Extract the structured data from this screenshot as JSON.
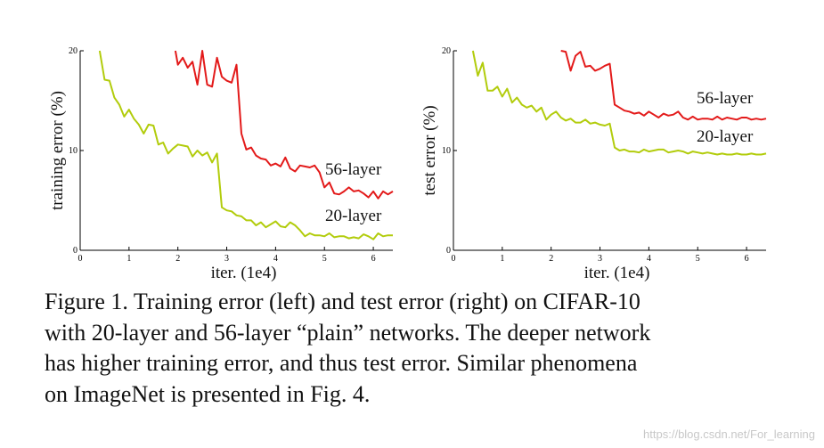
{
  "chart_data": [
    {
      "type": "line",
      "xlabel": "iter. (1e4)",
      "ylabel": "training error (%)",
      "xlim": [
        0,
        6.4
      ],
      "ylim": [
        0,
        20
      ],
      "xticks": [
        "0",
        "1",
        "2",
        "3",
        "4",
        "5",
        "6"
      ],
      "yticks": [
        "0",
        "10",
        "20"
      ],
      "grid": false,
      "series": [
        {
          "name": "56-layer",
          "color": "#e31a1a",
          "x": [
            1.95,
            2.0,
            2.1,
            2.2,
            2.3,
            2.4,
            2.5,
            2.6,
            2.7,
            2.8,
            2.9,
            3.0,
            3.1,
            3.2,
            3.3,
            3.4,
            3.5,
            3.6,
            3.7,
            3.8,
            3.9,
            4.0,
            4.1,
            4.2,
            4.3,
            4.4,
            4.5,
            4.6,
            4.7,
            4.8,
            4.9,
            5.0,
            5.1,
            5.2,
            5.3,
            5.4,
            5.5,
            5.6,
            5.7,
            5.8,
            5.9,
            6.0,
            6.1,
            6.2,
            6.3,
            6.4
          ],
          "y": [
            20,
            18.6,
            19.3,
            18.3,
            18.9,
            16.6,
            20.0,
            16.6,
            16.4,
            19.3,
            17.4,
            17.0,
            16.8,
            18.6,
            11.7,
            10.1,
            10.3,
            9.5,
            9.2,
            9.1,
            8.5,
            8.7,
            8.4,
            9.3,
            8.2,
            7.9,
            8.5,
            8.4,
            8.3,
            8.5,
            7.8,
            6.3,
            6.8,
            5.7,
            5.6,
            5.9,
            6.3,
            5.9,
            6.0,
            5.7,
            5.3,
            5.9,
            5.2,
            5.9,
            5.6,
            5.9
          ]
        },
        {
          "name": "20-layer",
          "color": "#b2cc0c",
          "x": [
            0.4,
            0.5,
            0.6,
            0.7,
            0.8,
            0.9,
            1.0,
            1.1,
            1.2,
            1.3,
            1.4,
            1.5,
            1.6,
            1.7,
            1.8,
            1.9,
            2.0,
            2.1,
            2.2,
            2.3,
            2.4,
            2.5,
            2.6,
            2.7,
            2.8,
            2.9,
            3.0,
            3.1,
            3.2,
            3.3,
            3.4,
            3.5,
            3.6,
            3.7,
            3.8,
            3.9,
            4.0,
            4.1,
            4.2,
            4.3,
            4.4,
            4.5,
            4.6,
            4.7,
            4.8,
            4.9,
            5.0,
            5.1,
            5.2,
            5.3,
            5.4,
            5.5,
            5.6,
            5.7,
            5.8,
            5.9,
            6.0,
            6.1,
            6.2,
            6.3,
            6.4
          ],
          "y": [
            20,
            17.1,
            17.0,
            15.3,
            14.6,
            13.4,
            14.1,
            13.2,
            12.6,
            11.7,
            12.6,
            12.5,
            10.6,
            10.8,
            9.7,
            10.2,
            10.6,
            10.5,
            10.4,
            9.4,
            10.0,
            9.5,
            9.8,
            8.8,
            9.7,
            4.3,
            4.0,
            3.9,
            3.5,
            3.4,
            3.0,
            3.0,
            2.5,
            2.8,
            2.3,
            2.6,
            2.9,
            2.4,
            2.3,
            2.8,
            2.5,
            2.0,
            1.4,
            1.7,
            1.5,
            1.5,
            1.4,
            1.7,
            1.3,
            1.4,
            1.4,
            1.2,
            1.3,
            1.2,
            1.6,
            1.4,
            1.1,
            1.7,
            1.4,
            1.5,
            1.5
          ]
        }
      ]
    },
    {
      "type": "line",
      "xlabel": "iter. (1e4)",
      "ylabel": "test error (%)",
      "xlim": [
        0,
        6.4
      ],
      "ylim": [
        0,
        20
      ],
      "xticks": [
        "0",
        "1",
        "2",
        "3",
        "4",
        "5",
        "6"
      ],
      "yticks": [
        "0",
        "10",
        "20"
      ],
      "grid": false,
      "series": [
        {
          "name": "56-layer",
          "color": "#e31a1a",
          "x": [
            2.2,
            2.3,
            2.4,
            2.5,
            2.6,
            2.7,
            2.8,
            2.9,
            3.0,
            3.1,
            3.2,
            3.3,
            3.4,
            3.5,
            3.6,
            3.7,
            3.8,
            3.9,
            4.0,
            4.1,
            4.2,
            4.3,
            4.4,
            4.5,
            4.6,
            4.7,
            4.8,
            4.9,
            5.0,
            5.1,
            5.2,
            5.3,
            5.4,
            5.5,
            5.6,
            5.7,
            5.8,
            5.9,
            6.0,
            6.1,
            6.2,
            6.3,
            6.4
          ],
          "y": [
            20,
            19.9,
            18.0,
            19.5,
            19.9,
            18.4,
            18.5,
            18.0,
            18.2,
            18.5,
            18.7,
            14.6,
            14.3,
            14.0,
            13.9,
            13.7,
            13.8,
            13.5,
            13.9,
            13.6,
            13.3,
            13.7,
            13.5,
            13.6,
            13.9,
            13.3,
            13.1,
            13.4,
            13.1,
            13.2,
            13.2,
            13.1,
            13.4,
            13.1,
            13.3,
            13.2,
            13.1,
            13.3,
            13.3,
            13.1,
            13.2,
            13.1,
            13.2
          ]
        },
        {
          "name": "20-layer",
          "color": "#b2cc0c",
          "x": [
            0.4,
            0.5,
            0.6,
            0.7,
            0.8,
            0.9,
            1.0,
            1.1,
            1.2,
            1.3,
            1.4,
            1.5,
            1.6,
            1.7,
            1.8,
            1.9,
            2.0,
            2.1,
            2.2,
            2.3,
            2.4,
            2.5,
            2.6,
            2.7,
            2.8,
            2.9,
            3.0,
            3.1,
            3.2,
            3.3,
            3.4,
            3.5,
            3.6,
            3.7,
            3.8,
            3.9,
            4.0,
            4.1,
            4.2,
            4.3,
            4.4,
            4.5,
            4.6,
            4.7,
            4.8,
            4.9,
            5.0,
            5.1,
            5.2,
            5.3,
            5.4,
            5.5,
            5.6,
            5.7,
            5.8,
            5.9,
            6.0,
            6.1,
            6.2,
            6.3,
            6.4
          ],
          "y": [
            20,
            17.5,
            18.8,
            16.0,
            16.0,
            16.4,
            15.4,
            16.2,
            14.8,
            15.3,
            14.6,
            14.3,
            14.5,
            13.9,
            14.3,
            13.1,
            13.6,
            13.9,
            13.3,
            13.0,
            13.2,
            12.8,
            12.8,
            13.1,
            12.7,
            12.8,
            12.6,
            12.5,
            12.7,
            10.3,
            10.0,
            10.1,
            9.9,
            9.9,
            9.8,
            10.1,
            9.9,
            10.0,
            10.1,
            10.1,
            9.8,
            9.9,
            10.0,
            9.9,
            9.7,
            9.9,
            9.8,
            9.7,
            9.8,
            9.7,
            9.6,
            9.7,
            9.6,
            9.6,
            9.7,
            9.6,
            9.6,
            9.7,
            9.6,
            9.6,
            9.7
          ]
        }
      ]
    }
  ],
  "caption": {
    "lines": [
      "Figure 1. Training error (left) and test error (right) on CIFAR-10",
      "with 20-layer and 56-layer “plain” networks. The deeper network",
      "has higher training error, and thus test error.  Similar phenomena",
      "on ImageNet is presented in Fig. 4."
    ]
  },
  "watermark": "https://blog.csdn.net/For_learning"
}
